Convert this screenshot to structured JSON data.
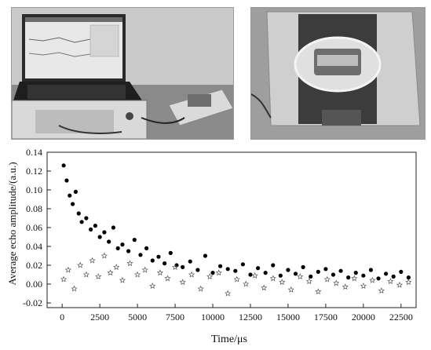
{
  "photos": {
    "left": {
      "subject": "laptop connected to NMR analyzer and probe unit",
      "label_text": ""
    },
    "right": {
      "subject": "sample in glass dish on NMR probe",
      "label_text": ""
    }
  },
  "chart_data": {
    "type": "scatter",
    "xlabel": "Time/μs",
    "ylabel": "Average echo amplitude/(a.u.)",
    "xlim": [
      -1000,
      23500
    ],
    "ylim": [
      -0.025,
      0.14
    ],
    "x_ticks": [
      0,
      2500,
      5000,
      7500,
      10000,
      12500,
      15000,
      17500,
      20000,
      22500
    ],
    "y_ticks": [
      -0.02,
      0.0,
      0.02,
      0.04,
      0.06,
      0.08,
      0.1,
      0.12,
      0.14
    ],
    "x_tick_labels": [
      "0",
      "2500",
      "5000",
      "7500",
      "10000",
      "12500",
      "15000",
      "17500",
      "20000",
      "22500"
    ],
    "y_tick_labels": [
      "-0.02",
      "0.00",
      "0.02",
      "0.04",
      "0.06",
      "0.08",
      "0.10",
      "0.12",
      "0.14"
    ],
    "grid": false,
    "legend": "none",
    "series": [
      {
        "marker": "filled-circle",
        "color": "#000000",
        "x": [
          100,
          300,
          500,
          700,
          900,
          1100,
          1300,
          1600,
          1900,
          2200,
          2500,
          2800,
          3100,
          3400,
          3700,
          4000,
          4400,
          4800,
          5200,
          5600,
          6000,
          6400,
          6800,
          7200,
          7600,
          8000,
          8500,
          9000,
          9500,
          10000,
          10500,
          11000,
          11500,
          12000,
          12500,
          13000,
          13500,
          14000,
          14500,
          15000,
          15500,
          16000,
          16500,
          17000,
          17500,
          18000,
          18500,
          19000,
          19500,
          20000,
          20500,
          21000,
          21500,
          22000,
          22500,
          23000
        ],
        "y": [
          0.126,
          0.11,
          0.094,
          0.085,
          0.098,
          0.075,
          0.066,
          0.07,
          0.058,
          0.062,
          0.05,
          0.055,
          0.045,
          0.06,
          0.038,
          0.042,
          0.035,
          0.047,
          0.031,
          0.038,
          0.025,
          0.029,
          0.022,
          0.033,
          0.02,
          0.018,
          0.024,
          0.015,
          0.03,
          0.012,
          0.019,
          0.016,
          0.014,
          0.021,
          0.01,
          0.017,
          0.012,
          0.02,
          0.009,
          0.015,
          0.011,
          0.018,
          0.008,
          0.013,
          0.016,
          0.01,
          0.014,
          0.007,
          0.012,
          0.009,
          0.015,
          0.006,
          0.011,
          0.008,
          0.013,
          0.007
        ]
      },
      {
        "marker": "open-star",
        "color": "#555555",
        "x": [
          100,
          400,
          800,
          1200,
          1600,
          2000,
          2400,
          2800,
          3200,
          3600,
          4000,
          4500,
          5000,
          5500,
          6000,
          6500,
          7000,
          7500,
          8000,
          8600,
          9200,
          9800,
          10400,
          11000,
          11600,
          12200,
          12800,
          13400,
          14000,
          14600,
          15200,
          15800,
          16400,
          17000,
          17600,
          18200,
          18800,
          19400,
          20000,
          20600,
          21200,
          21800,
          22400,
          23000
        ],
        "y": [
          0.005,
          0.015,
          -0.005,
          0.02,
          0.01,
          0.025,
          0.008,
          0.03,
          0.012,
          0.018,
          0.004,
          0.022,
          0.01,
          0.015,
          -0.002,
          0.012,
          0.006,
          0.018,
          0.002,
          0.01,
          -0.005,
          0.008,
          0.012,
          -0.01,
          0.005,
          0.0,
          0.009,
          -0.004,
          0.006,
          0.002,
          -0.006,
          0.008,
          0.003,
          -0.008,
          0.005,
          0.001,
          -0.003,
          0.006,
          -0.002,
          0.004,
          -0.007,
          0.003,
          -0.001,
          0.002
        ]
      }
    ]
  }
}
